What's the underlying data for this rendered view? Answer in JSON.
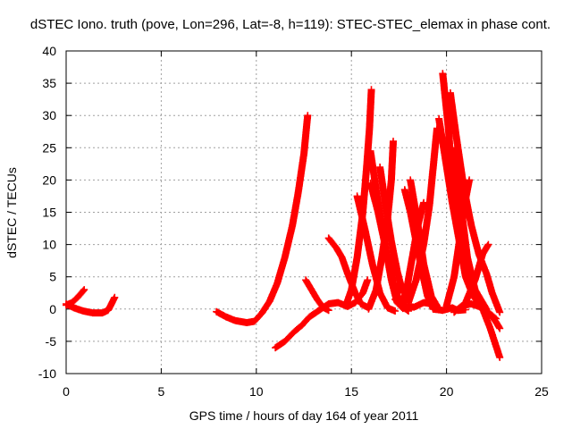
{
  "chart_data": {
    "type": "scatter",
    "title": "dSTEC Iono. truth (pove, Lon=296, Lat=-8, h=119): STEC-STEC_elemax in phase cont.",
    "xlabel": "GPS time / hours of day 164 of year 2011",
    "ylabel": "dSTEC  / TECUs",
    "xlim": [
      0,
      25
    ],
    "ylim": [
      -10,
      40
    ],
    "xticks": [
      0,
      5,
      10,
      15,
      20,
      25
    ],
    "yticks": [
      -10,
      -5,
      0,
      5,
      10,
      15,
      20,
      25,
      30,
      35,
      40
    ],
    "grid": true,
    "marker": "plus",
    "color": "#ff0000",
    "series": [
      {
        "values": [
          [
            0.0,
            0.6
          ],
          [
            0.3,
            1.0
          ],
          [
            0.6,
            1.8
          ],
          [
            0.95,
            3.0
          ]
        ]
      },
      {
        "values": [
          [
            0.0,
            0.8
          ],
          [
            0.4,
            0.2
          ],
          [
            0.9,
            -0.3
          ],
          [
            1.4,
            -0.6
          ],
          [
            1.9,
            -0.6
          ],
          [
            2.2,
            -0.2
          ],
          [
            2.35,
            0.6
          ],
          [
            2.55,
            1.8
          ]
        ]
      },
      {
        "values": [
          [
            7.9,
            -0.4
          ],
          [
            8.4,
            -1.2
          ],
          [
            8.9,
            -1.8
          ],
          [
            9.5,
            -2.1
          ],
          [
            9.9,
            -1.9
          ],
          [
            10.3,
            -0.6
          ],
          [
            10.7,
            1.2
          ],
          [
            11.1,
            4.0
          ],
          [
            11.5,
            8.0
          ],
          [
            11.9,
            13.0
          ],
          [
            12.2,
            18.0
          ],
          [
            12.5,
            24.0
          ],
          [
            12.7,
            30.0
          ]
        ]
      },
      {
        "values": [
          [
            11.0,
            -6.0
          ],
          [
            11.5,
            -5.0
          ],
          [
            12.0,
            -3.5
          ],
          [
            12.4,
            -2.5
          ],
          [
            12.8,
            -1.2
          ],
          [
            13.3,
            -0.2
          ],
          [
            13.8,
            0.8
          ],
          [
            14.3,
            1.0
          ],
          [
            14.8,
            0.4
          ],
          [
            15.2,
            1.0
          ],
          [
            15.6,
            2.5
          ],
          [
            15.85,
            4.5
          ]
        ]
      },
      {
        "values": [
          [
            12.6,
            4.5
          ],
          [
            12.9,
            3.0
          ],
          [
            13.2,
            1.5
          ],
          [
            13.5,
            0.3
          ],
          [
            13.8,
            -0.2
          ]
        ]
      },
      {
        "values": [
          [
            13.8,
            11.0
          ],
          [
            14.2,
            9.5
          ],
          [
            14.5,
            8.0
          ],
          [
            14.8,
            5.5
          ],
          [
            15.2,
            2.5
          ],
          [
            15.5,
            0.8
          ],
          [
            15.9,
            0.2
          ]
        ]
      },
      {
        "values": [
          [
            14.7,
            0.5
          ],
          [
            15.0,
            3.0
          ],
          [
            15.3,
            8.0
          ],
          [
            15.6,
            15.0
          ],
          [
            15.8,
            22.0
          ],
          [
            15.95,
            28.0
          ],
          [
            16.05,
            34.0
          ]
        ]
      },
      {
        "values": [
          [
            15.3,
            17.5
          ],
          [
            15.7,
            12.5
          ],
          [
            16.1,
            7.0
          ],
          [
            16.5,
            2.5
          ],
          [
            16.9,
            0.2
          ],
          [
            17.3,
            -0.3
          ]
        ]
      },
      {
        "values": [
          [
            16.0,
            24.5
          ],
          [
            16.3,
            18.5
          ],
          [
            16.7,
            11.0
          ],
          [
            17.1,
            4.5
          ],
          [
            17.4,
            1.0
          ],
          [
            17.7,
            0.1
          ]
        ]
      },
      {
        "values": [
          [
            16.0,
            19.5
          ],
          [
            16.4,
            15.0
          ],
          [
            16.8,
            9.5
          ],
          [
            17.2,
            4.0
          ],
          [
            17.6,
            0.5
          ],
          [
            18.0,
            -0.3
          ]
        ]
      },
      {
        "values": [
          [
            16.5,
            22.0
          ],
          [
            16.8,
            16.0
          ],
          [
            17.1,
            10.5
          ],
          [
            17.4,
            6.0
          ],
          [
            17.7,
            2.5
          ]
        ]
      },
      {
        "values": [
          [
            15.9,
            0.0
          ],
          [
            16.3,
            3.0
          ],
          [
            16.6,
            8.0
          ],
          [
            16.9,
            14.0
          ],
          [
            17.1,
            20.0
          ],
          [
            17.2,
            26.0
          ]
        ]
      },
      {
        "values": [
          [
            17.3,
            1.5
          ],
          [
            17.8,
            0.4
          ],
          [
            18.3,
            0.3
          ],
          [
            18.8,
            1.0
          ],
          [
            19.3,
            0.8
          ]
        ]
      },
      {
        "values": [
          [
            17.8,
            18.5
          ],
          [
            18.1,
            15.0
          ],
          [
            18.4,
            10.5
          ],
          [
            18.7,
            6.0
          ],
          [
            19.0,
            2.0
          ],
          [
            19.3,
            0.0
          ]
        ]
      },
      {
        "values": [
          [
            18.1,
            20.0
          ],
          [
            18.5,
            13.0
          ],
          [
            18.8,
            7.0
          ],
          [
            19.2,
            2.0
          ],
          [
            19.5,
            0.5
          ]
        ]
      },
      {
        "values": [
          [
            17.6,
            0.5
          ],
          [
            17.9,
            3.0
          ],
          [
            18.2,
            8.0
          ],
          [
            18.5,
            13.0
          ],
          [
            18.8,
            16.5
          ]
        ]
      },
      {
        "values": [
          [
            18.0,
            1.0
          ],
          [
            18.4,
            4.5
          ],
          [
            18.8,
            10.0
          ],
          [
            19.1,
            16.0
          ],
          [
            19.3,
            22.0
          ],
          [
            19.5,
            28.0
          ]
        ]
      },
      {
        "values": [
          [
            19.3,
            0.0
          ],
          [
            19.8,
            -0.2
          ],
          [
            20.3,
            0.2
          ],
          [
            20.6,
            -0.2
          ],
          [
            21.0,
            -0.1
          ]
        ]
      },
      {
        "values": [
          [
            19.6,
            29.5
          ],
          [
            19.9,
            24.0
          ],
          [
            20.3,
            16.5
          ],
          [
            20.7,
            10.0
          ],
          [
            21.0,
            5.0
          ],
          [
            21.4,
            2.0
          ],
          [
            21.8,
            0.5
          ],
          [
            22.2,
            -0.5
          ],
          [
            22.6,
            -2.0
          ],
          [
            22.8,
            -3.0
          ]
        ]
      },
      {
        "values": [
          [
            19.8,
            36.5
          ],
          [
            20.1,
            28.0
          ],
          [
            20.3,
            20.0
          ],
          [
            20.6,
            13.0
          ],
          [
            21.0,
            7.0
          ],
          [
            21.4,
            3.5
          ],
          [
            21.8,
            1.5
          ],
          [
            22.1,
            0.0
          ]
        ]
      },
      {
        "values": [
          [
            20.0,
            0.5
          ],
          [
            20.4,
            5.0
          ],
          [
            20.7,
            11.0
          ],
          [
            21.0,
            17.0
          ],
          [
            21.2,
            20.0
          ]
        ]
      },
      {
        "values": [
          [
            20.2,
            33.5
          ],
          [
            20.5,
            27.0
          ],
          [
            20.9,
            19.0
          ],
          [
            21.3,
            13.0
          ],
          [
            21.7,
            8.5
          ],
          [
            22.1,
            5.5
          ],
          [
            22.4,
            2.5
          ],
          [
            22.8,
            -0.5
          ]
        ]
      },
      {
        "values": [
          [
            20.5,
            25.0
          ],
          [
            20.8,
            15.0
          ],
          [
            21.1,
            8.0
          ],
          [
            21.5,
            3.0
          ],
          [
            21.9,
            0.0
          ],
          [
            22.3,
            -3.0
          ],
          [
            22.8,
            -7.5
          ]
        ]
      },
      {
        "values": [
          [
            21.0,
            1.0
          ],
          [
            21.5,
            4.5
          ],
          [
            21.9,
            8.5
          ],
          [
            22.2,
            10.0
          ]
        ]
      },
      {
        "values": [
          [
            20.4,
            -0.5
          ],
          [
            20.8,
            0.5
          ],
          [
            21.3,
            0.8
          ],
          [
            21.8,
            0.3
          ],
          [
            22.2,
            -0.5
          ],
          [
            22.6,
            -1.5
          ]
        ]
      }
    ]
  }
}
